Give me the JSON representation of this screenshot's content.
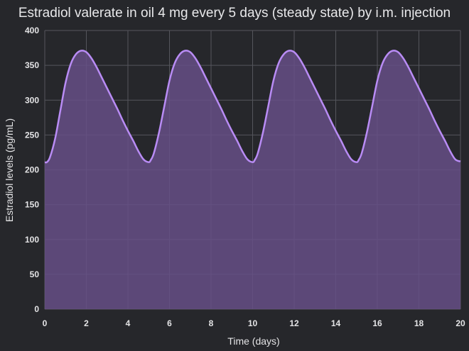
{
  "chart_data": {
    "type": "area",
    "title": "Estradiol valerate in oil 4 mg every 5 days (steady state) by i.m. injection",
    "xlabel": "Time (days)",
    "ylabel": "Estradiol levels (pg/mL)",
    "xlim": [
      0,
      20
    ],
    "ylim": [
      0,
      400
    ],
    "x_ticks": [
      "0",
      "2",
      "4",
      "6",
      "8",
      "10",
      "12",
      "14",
      "16",
      "18",
      "20"
    ],
    "y_ticks": [
      "0",
      "50",
      "100",
      "150",
      "200",
      "250",
      "300",
      "350",
      "400"
    ],
    "grid": true,
    "colors": {
      "line": "#b98cf5",
      "fill": "#664f86",
      "background": "#26272b",
      "grid": "#55565c"
    },
    "series": [
      {
        "x": [
          0,
          0.1,
          0.25,
          0.5,
          0.75,
          1.0,
          1.25,
          1.5,
          1.75,
          2.0,
          2.25,
          2.5,
          2.75,
          3.0,
          3.25,
          3.5,
          3.75,
          4.0,
          4.25,
          4.5,
          4.75,
          5.0,
          5.1,
          5.25,
          5.5,
          5.75,
          6.0,
          6.25,
          6.5,
          6.75,
          7.0,
          7.25,
          7.5,
          7.75,
          8.0,
          8.25,
          8.5,
          8.75,
          9.0,
          9.25,
          9.5,
          9.75,
          10.0,
          10.1,
          10.25,
          10.5,
          10.75,
          11.0,
          11.25,
          11.5,
          11.75,
          12.0,
          12.25,
          12.5,
          12.75,
          13.0,
          13.25,
          13.5,
          13.75,
          14.0,
          14.25,
          14.5,
          14.75,
          15.0,
          15.1,
          15.25,
          15.5,
          15.75,
          16.0,
          16.25,
          16.5,
          16.75,
          17.0,
          17.25,
          17.5,
          17.75,
          18.0,
          18.25,
          18.5,
          18.75,
          19.0,
          19.25,
          19.5,
          19.75,
          20.0
        ],
        "values": [
          211,
          211,
          218,
          245,
          285,
          325,
          352,
          366,
          371,
          369,
          360,
          347,
          332,
          317,
          302,
          287,
          271,
          256,
          242,
          227,
          215,
          211,
          214,
          224,
          254,
          291,
          328,
          353,
          366,
          371,
          369,
          360,
          347,
          332,
          317,
          302,
          287,
          271,
          256,
          242,
          227,
          215,
          211,
          214,
          224,
          254,
          291,
          328,
          353,
          366,
          371,
          369,
          360,
          347,
          332,
          317,
          302,
          287,
          271,
          256,
          242,
          227,
          215,
          211,
          214,
          224,
          254,
          291,
          328,
          353,
          366,
          371,
          369,
          360,
          347,
          332,
          317,
          302,
          287,
          271,
          256,
          242,
          227,
          215,
          212
        ]
      }
    ]
  }
}
